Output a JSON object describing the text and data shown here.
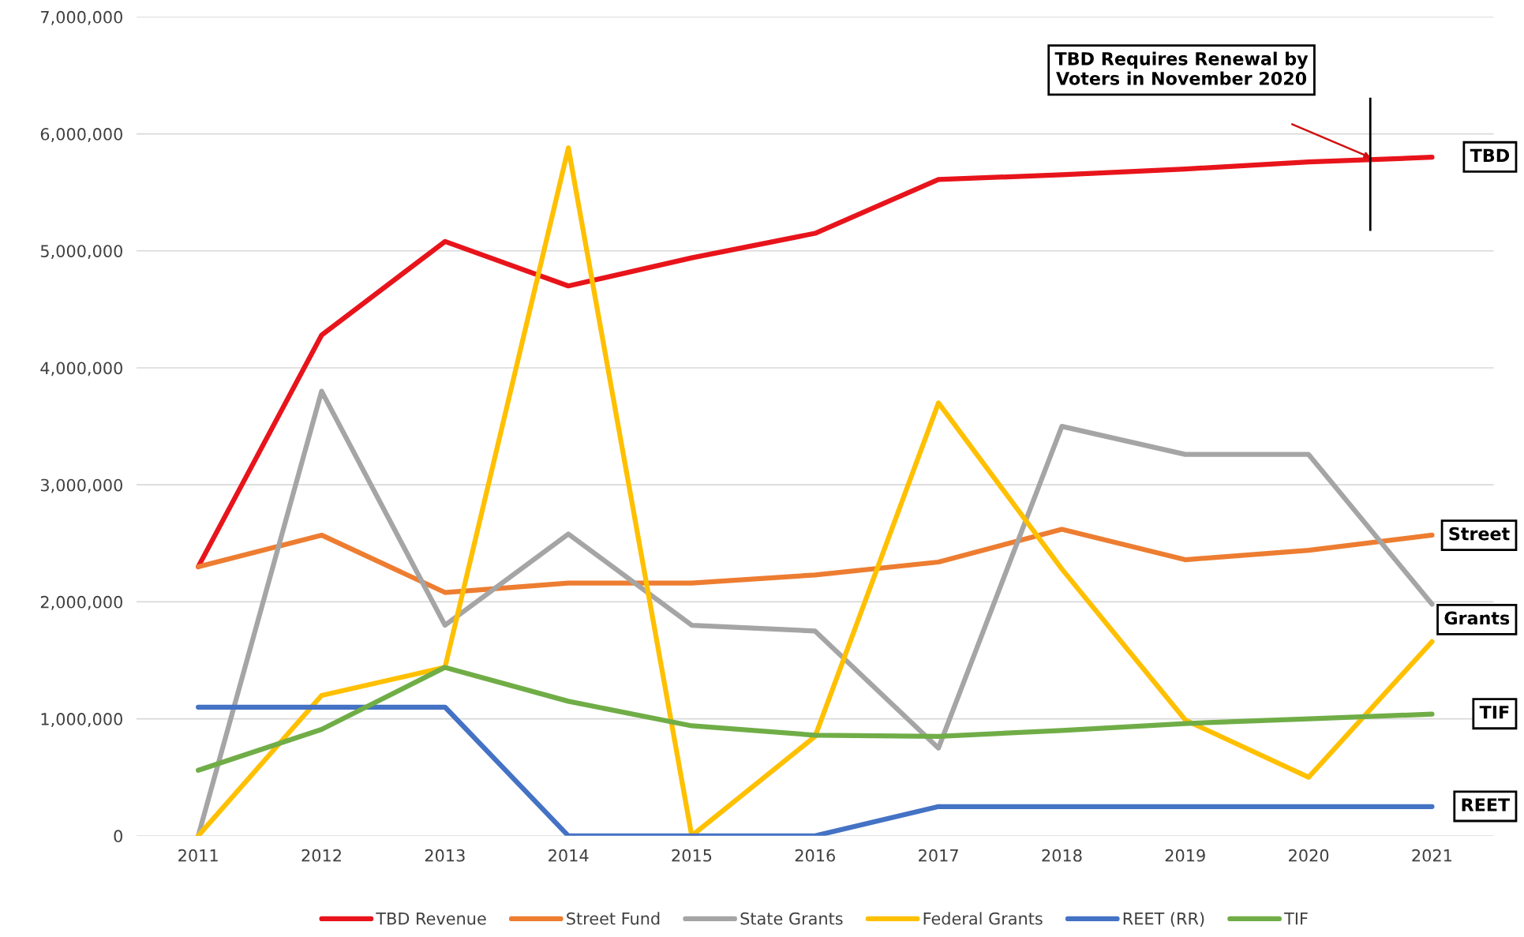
{
  "chart_data": {
    "type": "line",
    "x": [
      2011,
      2012,
      2013,
      2014,
      2015,
      2016,
      2017,
      2018,
      2019,
      2020,
      2021
    ],
    "xlim": [
      2010.5,
      2021.5
    ],
    "xticks": [
      2011,
      2012,
      2013,
      2014,
      2015,
      2016,
      2017,
      2018,
      2019,
      2020,
      2021
    ],
    "ylim": [
      0,
      7000000
    ],
    "yticks": [
      {
        "value": 0,
        "label": "0"
      },
      {
        "value": 1000000,
        "label": "1,000,000"
      },
      {
        "value": 2000000,
        "label": "2,000,000"
      },
      {
        "value": 3000000,
        "label": "3,000,000"
      },
      {
        "value": 4000000,
        "label": "4,000,000"
      },
      {
        "value": 5000000,
        "label": "5,000,000"
      },
      {
        "value": 6000000,
        "label": "6,000,000"
      },
      {
        "value": 7000000,
        "label": "7,000,000"
      }
    ],
    "grid": "y",
    "legend": "bottom",
    "marker": "none",
    "line_style": "solid",
    "series": [
      {
        "name": "TBD Revenue",
        "color": "#e8141b",
        "values": [
          2300000,
          4280000,
          5080000,
          4700000,
          4940000,
          5150000,
          5610000,
          5650000,
          5700000,
          5760000,
          5800000
        ]
      },
      {
        "name": "Street Fund",
        "color": "#ed7d31",
        "values": [
          2300000,
          2570000,
          2080000,
          2160000,
          2160000,
          2230000,
          2340000,
          2620000,
          2360000,
          2440000,
          2570000
        ]
      },
      {
        "name": "State Grants",
        "color": "#a5a5a5",
        "values": [
          0,
          3800000,
          1800000,
          2580000,
          1800000,
          1750000,
          750000,
          3500000,
          3260000,
          3260000,
          1980000
        ]
      },
      {
        "name": "Federal Grants",
        "color": "#ffc000",
        "values": [
          0,
          1200000,
          1440000,
          5880000,
          0,
          850000,
          3700000,
          2280000,
          990000,
          500000,
          1660000
        ]
      },
      {
        "name": "REET (RR)",
        "color": "#4472c4",
        "values": [
          1100000,
          1100000,
          1100000,
          0,
          0,
          0,
          250000,
          250000,
          250000,
          250000,
          250000
        ]
      },
      {
        "name": "TIF",
        "color": "#70ad47",
        "values": [
          560000,
          910000,
          1440000,
          1150000,
          940000,
          860000,
          850000,
          900000,
          960000,
          1000000,
          1040000
        ]
      }
    ],
    "ref_lines": [
      {
        "axis": "x",
        "value": 2020.5,
        "label": null,
        "color": "#000000"
      }
    ],
    "annotations": [
      "TBD Requires Renewal by Voters in November 2020",
      "TBD",
      "Street",
      "Grants",
      "TIF",
      "REET"
    ]
  }
}
